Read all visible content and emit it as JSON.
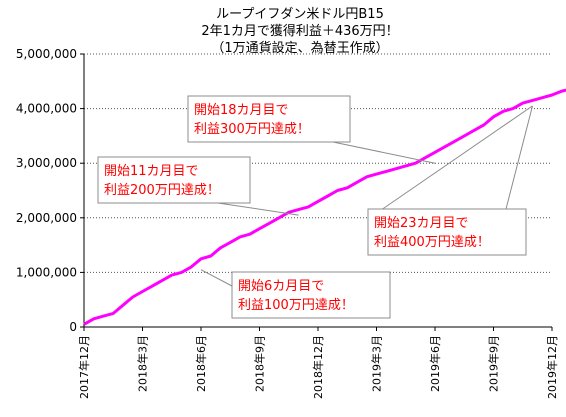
{
  "chart_data": {
    "type": "line",
    "title_lines": [
      "ループイフダン米ドル円B15",
      "2年1カ月で獲得利益＋436万円！",
      "（1万通貨設定、為替王作成）"
    ],
    "x_ticks": [
      "2017年12月",
      "2018年3月",
      "2018年6月",
      "2018年9月",
      "2018年12月",
      "2019年3月",
      "2019年6月",
      "2019年9月",
      "2019年12月"
    ],
    "ylim": [
      0,
      5000000
    ],
    "y_ticks": [
      0,
      1000000,
      2000000,
      3000000,
      4000000,
      5000000
    ],
    "y_tick_labels": [
      "0",
      "1,000,000",
      "2,000,000",
      "3,000,000",
      "4,000,000",
      "5,000,000"
    ],
    "grid": "horizontal-dotted",
    "series": [
      {
        "color": "#ff00ff",
        "x_months": [
          0,
          0.5,
          1,
          1.5,
          2,
          2.5,
          3,
          3.5,
          4,
          4.5,
          5,
          5.5,
          6,
          6.5,
          7,
          7.5,
          8,
          8.5,
          9,
          9.5,
          10,
          10.5,
          11,
          11.5,
          12,
          12.5,
          13,
          13.5,
          14,
          14.5,
          15,
          15.5,
          16,
          16.5,
          17,
          17.5,
          18,
          18.5,
          19,
          19.5,
          20,
          20.5,
          21,
          21.5,
          22,
          22.5,
          23,
          23.5,
          24,
          24.5,
          25
        ],
        "values": [
          50000,
          150000,
          200000,
          250000,
          400000,
          550000,
          650000,
          750000,
          850000,
          950000,
          1000000,
          1100000,
          1250000,
          1300000,
          1450000,
          1550000,
          1650000,
          1700000,
          1800000,
          1900000,
          2000000,
          2100000,
          2150000,
          2200000,
          2300000,
          2400000,
          2500000,
          2550000,
          2650000,
          2750000,
          2800000,
          2850000,
          2900000,
          2950000,
          3000000,
          3100000,
          3200000,
          3300000,
          3400000,
          3500000,
          3600000,
          3700000,
          3850000,
          3950000,
          4000000,
          4100000,
          4150000,
          4200000,
          4250000,
          4320000,
          4360000
        ]
      }
    ],
    "annotations": [
      {
        "lines": [
          "開始6カ月目で",
          "利益100万円達成！"
        ],
        "target_month": 6,
        "target_value": 1050000
      },
      {
        "lines": [
          "開始11カ月目で",
          "利益200万円達成！"
        ],
        "target_month": 11,
        "target_value": 2050000
      },
      {
        "lines": [
          "開始18カ月目で",
          "利益300万円達成！"
        ],
        "target_month": 18,
        "target_value": 3000000
      },
      {
        "lines": [
          "開始23カ月目で",
          "利益400万円達成！"
        ],
        "target_month": 23,
        "target_value": 4050000
      }
    ]
  }
}
